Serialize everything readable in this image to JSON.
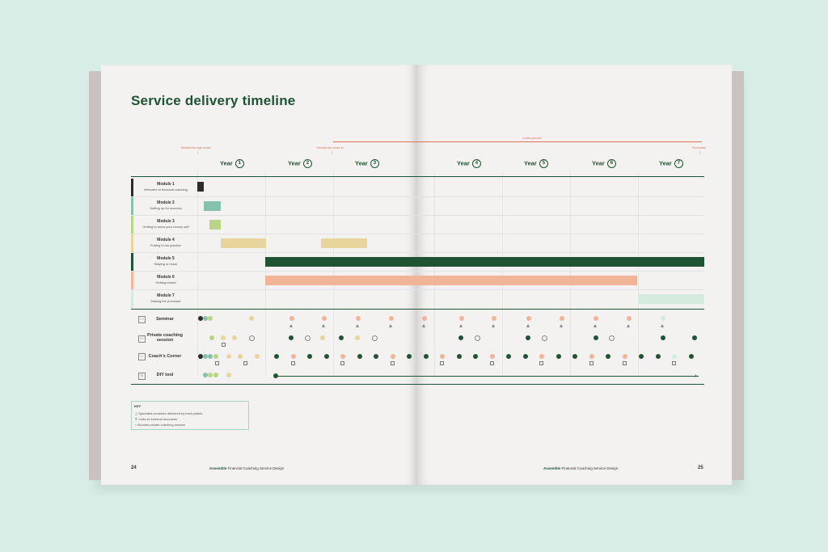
{
  "title": "Service delivery timeline",
  "annotations": {
    "sign_lease": "Residents sign lease",
    "move_in": "Residents move in",
    "lease_period": "Lease period",
    "purchase": "Purchase"
  },
  "years": [
    {
      "label": "Year",
      "num": "1"
    },
    {
      "label": "Year",
      "num": "2"
    },
    {
      "label": "Year",
      "num": "3"
    },
    {
      "label": "Year",
      "num": "4"
    },
    {
      "label": "Year",
      "num": "5"
    },
    {
      "label": "Year",
      "num": "6"
    },
    {
      "label": "Year",
      "num": "7"
    }
  ],
  "modules": [
    {
      "title": "Module 1",
      "subtitle": "Welcome to financial coaching",
      "color": "#2b2b2b"
    },
    {
      "title": "Module 2",
      "subtitle": "Setting up for success",
      "color": "#86c1ad"
    },
    {
      "title": "Module 3",
      "subtitle": "Getting to know your money self",
      "color": "#b9d486"
    },
    {
      "title": "Module 4",
      "subtitle": "Putting it into practice",
      "color": "#e8d59e"
    },
    {
      "title": "Module 5",
      "subtitle": "Staying on track",
      "color": "#1e5434"
    },
    {
      "title": "Module 6",
      "subtitle": "Getting ahead",
      "color": "#f1b496"
    },
    {
      "title": "Module 7",
      "subtitle": "Making the purchase",
      "color": "#d5ebdf"
    }
  ],
  "activities": [
    {
      "label": "Seminar",
      "icon": "presentation-icon"
    },
    {
      "label": "Private coaching session",
      "icon": "people-icon"
    },
    {
      "label": "Coach's Corner",
      "icon": "hat-icon"
    },
    {
      "label": "DIY tool",
      "icon": "document-icon"
    }
  ],
  "key": {
    "title": "KEY",
    "items": [
      "Specialist seminars delivered by third parties",
      "Links to external resources",
      "Booster private coaching session"
    ]
  },
  "footer": {
    "left_page": "24",
    "right_page": "25",
    "brand": "Assemble",
    "doc_title": "Financial Coaching Service Design"
  },
  "colors": {
    "dark_green": "#1e5434",
    "peach": "#f1b496",
    "sand": "#e8d59e",
    "teal": "#86c1ad",
    "lime": "#b9d486",
    "accent_red": "#e0705a"
  }
}
